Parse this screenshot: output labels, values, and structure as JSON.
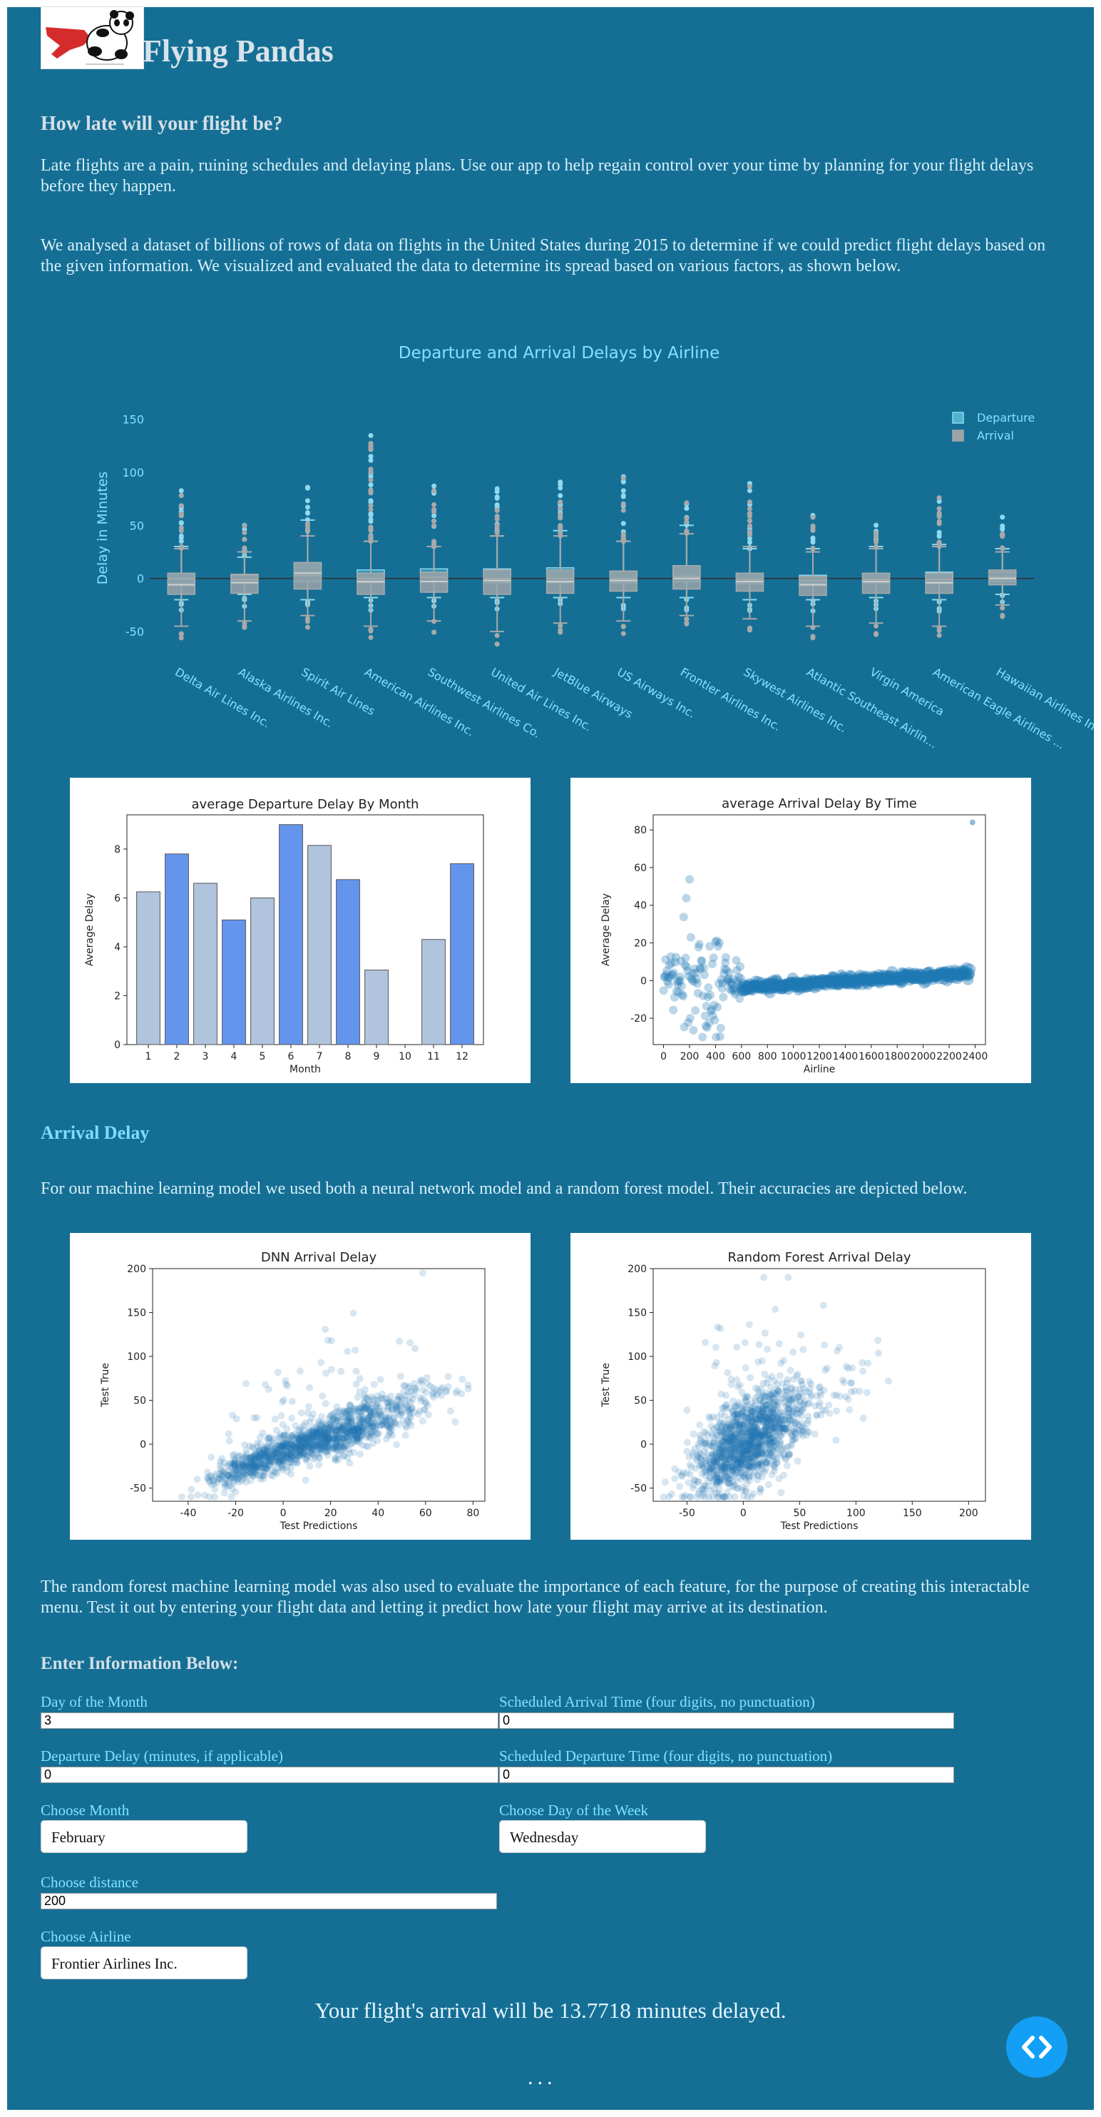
{
  "header": {
    "title": "Flying Pandas"
  },
  "intro": {
    "heading": "How late will your flight be?",
    "para1": "Late flights are a pain, ruining schedules and delaying plans. Use our app to help regain control over your time by planning for your flight delays before they happen.",
    "para2": "We analysed a dataset of billions of rows of data on flights in the United States during 2015 to determine if we could predict flight delays based on the given information. We visualized and evaluated the data to determine its spread based on various factors, as shown below."
  },
  "colors": {
    "page_bg": "#156f95",
    "accent": "#7fe4ff",
    "departure": "#8fd8ee",
    "arrival": "#a9a9a9",
    "bar_light": "#b0c4de",
    "bar_dark": "#6495ed",
    "point": "#1f77b4",
    "fab": "#139ff5"
  },
  "chart_data": [
    {
      "type": "box",
      "title": "Departure and Arrival Delays by Airline",
      "ylabel": "Delay in Minutes",
      "ylim": [
        -60,
        155
      ],
      "yticks": [
        -50,
        0,
        50,
        100,
        150
      ],
      "legend": [
        "Departure",
        "Arrival"
      ],
      "legend_position": "top-right",
      "categories": [
        "Delta Air Lines Inc.",
        "Alaska Airlines Inc.",
        "Spirit Air Lines",
        "American Airlines Inc.",
        "Southwest Airlines Co.",
        "United Air Lines Inc.",
        "JetBlue Airways",
        "US Airways Inc.",
        "Frontier Airlines Inc.",
        "Skywest Airlines Inc.",
        "Atlantic Southeast Airlin...",
        "Virgin America",
        "American Eagle Airlines ...",
        "Hawaiian Airlines Inc."
      ],
      "series": [
        {
          "name": "Departure",
          "boxes": [
            {
              "q1": -5,
              "median": 0,
              "q3": 5,
              "min": -20,
              "max": 30,
              "top": 90
            },
            {
              "q1": -4,
              "median": -1,
              "q3": 3,
              "min": -15,
              "max": 20,
              "top": 55
            },
            {
              "q1": -3,
              "median": 3,
              "q3": 15,
              "min": -20,
              "max": 55,
              "top": 90
            },
            {
              "q1": -4,
              "median": 0,
              "q3": 8,
              "min": -18,
              "max": 35,
              "top": 145
            },
            {
              "q1": -3,
              "median": 1,
              "q3": 9,
              "min": -18,
              "max": 30,
              "top": 90
            },
            {
              "q1": -4,
              "median": 0,
              "q3": 9,
              "min": -18,
              "max": 40,
              "top": 85
            },
            {
              "q1": -4,
              "median": 0,
              "q3": 10,
              "min": -18,
              "max": 45,
              "top": 95
            },
            {
              "q1": -4,
              "median": 0,
              "q3": 7,
              "min": -18,
              "max": 35,
              "top": 100
            },
            {
              "q1": -3,
              "median": 2,
              "q3": 12,
              "min": -18,
              "max": 50,
              "top": 80
            },
            {
              "q1": -5,
              "median": -1,
              "q3": 5,
              "min": -20,
              "max": 28,
              "top": 90
            },
            {
              "q1": -5,
              "median": -2,
              "q3": 3,
              "min": -20,
              "max": 28,
              "top": 60
            },
            {
              "q1": -4,
              "median": -1,
              "q3": 5,
              "min": -18,
              "max": 30,
              "top": 55
            },
            {
              "q1": -5,
              "median": -1,
              "q3": 6,
              "min": -20,
              "max": 32,
              "top": 82
            },
            {
              "q1": -3,
              "median": 1,
              "q3": 6,
              "min": -15,
              "max": 28,
              "top": 60
            }
          ]
        },
        {
          "name": "Arrival",
          "boxes": [
            {
              "q1": -15,
              "median": -6,
              "q3": 5,
              "min": -45,
              "max": 28,
              "top": 85
            },
            {
              "q1": -14,
              "median": -4,
              "q3": 4,
              "min": -40,
              "max": 25,
              "top": 55
            },
            {
              "q1": -10,
              "median": 5,
              "q3": 15,
              "min": -35,
              "max": 40,
              "top": 65
            },
            {
              "q1": -15,
              "median": -3,
              "q3": 5,
              "min": -45,
              "max": 35,
              "top": 140
            },
            {
              "q1": -13,
              "median": -3,
              "q3": 6,
              "min": -40,
              "max": 30,
              "top": 90
            },
            {
              "q1": -15,
              "median": -2,
              "q3": 8,
              "min": -50,
              "max": 40,
              "top": 80
            },
            {
              "q1": -14,
              "median": -3,
              "q3": 8,
              "min": -42,
              "max": 40,
              "top": 90
            },
            {
              "q1": -12,
              "median": -2,
              "q3": 7,
              "min": -40,
              "max": 35,
              "top": 100
            },
            {
              "q1": -10,
              "median": 0,
              "q3": 12,
              "min": -35,
              "max": 42,
              "top": 75
            },
            {
              "q1": -12,
              "median": -3,
              "q3": 5,
              "min": -38,
              "max": 30,
              "top": 90
            },
            {
              "q1": -16,
              "median": -6,
              "q3": 2,
              "min": -45,
              "max": 25,
              "top": 60
            },
            {
              "q1": -14,
              "median": -3,
              "q3": 5,
              "min": -42,
              "max": 28,
              "top": 55
            },
            {
              "q1": -14,
              "median": -4,
              "q3": 5,
              "min": -45,
              "max": 30,
              "top": 80
            },
            {
              "q1": -6,
              "median": 0,
              "q3": 8,
              "min": -25,
              "max": 25,
              "top": 60
            }
          ]
        }
      ]
    },
    {
      "type": "bar",
      "title": "average Departure Delay By Month",
      "xlabel": "Month",
      "ylabel": "Average Delay",
      "ylim": [
        0,
        9.4
      ],
      "yticks": [
        0,
        2,
        4,
        6,
        8
      ],
      "categories": [
        "1",
        "2",
        "3",
        "4",
        "5",
        "6",
        "7",
        "8",
        "9",
        "10",
        "11",
        "12"
      ],
      "values": [
        6.25,
        7.8,
        6.6,
        5.1,
        6.0,
        9.0,
        8.15,
        6.75,
        3.05,
        null,
        4.3,
        7.4
      ]
    },
    {
      "type": "scatter",
      "title": "average Arrival Delay By Time",
      "xlabel": "Airline",
      "ylabel": "Average Delay",
      "xlim": [
        -80,
        2480
      ],
      "ylim": [
        -34,
        88
      ],
      "xticks": [
        0,
        200,
        400,
        600,
        800,
        1000,
        1200,
        1400,
        1600,
        1800,
        2000,
        2200,
        2400
      ],
      "yticks": [
        -20,
        0,
        20,
        40,
        60,
        80
      ]
    },
    {
      "type": "scatter",
      "title": "DNN Arrival Delay",
      "xlabel": "Test Predictions",
      "ylabel": "Test True",
      "xlim": [
        -55,
        85
      ],
      "ylim": [
        -65,
        200
      ],
      "xticks": [
        -40,
        -20,
        0,
        20,
        40,
        60,
        80
      ],
      "yticks": [
        -50,
        0,
        50,
        100,
        150,
        200
      ]
    },
    {
      "type": "scatter",
      "title": "Random Forest Arrival Delay",
      "xlabel": "Test Predictions",
      "ylabel": "Test True",
      "xlim": [
        -80,
        215
      ],
      "ylim": [
        -65,
        200
      ],
      "xticks": [
        -50,
        0,
        50,
        100,
        150,
        200
      ],
      "yticks": [
        -50,
        0,
        50,
        100,
        150,
        200
      ]
    }
  ],
  "model": {
    "heading": "Arrival Delay",
    "para": "For our machine learning model we used both a neural network model and a random forest model. Their accuracies are depicted below.",
    "para2": "The random forest machine learning model was also used to evaluate the importance of each feature, for the purpose of creating this interactable menu. Test it out by entering your flight data and letting it predict how late your flight may arrive at its destination."
  },
  "form": {
    "heading": "Enter Information Below:",
    "day_label": "Day of the Month",
    "day_value": "3",
    "arr_time_label": "Scheduled Arrival Time (four digits, no punctuation)",
    "arr_time_value": "0",
    "dep_delay_label": "Departure Delay (minutes, if applicable)",
    "dep_delay_value": "0",
    "dep_time_label": "Scheduled Departure Time (four digits, no punctuation)",
    "dep_time_value": "0",
    "month_label": "Choose Month",
    "month_value": "February",
    "weekday_label": "Choose Day of the Week",
    "weekday_value": "Wednesday",
    "distance_label": "Choose distance",
    "distance_value": "200",
    "airline_label": "Choose Airline",
    "airline_value": "Frontier Airlines Inc."
  },
  "result": {
    "text": "Your flight's arrival will be 13.7718 minutes delayed."
  },
  "footer": {
    "dots": "..."
  }
}
